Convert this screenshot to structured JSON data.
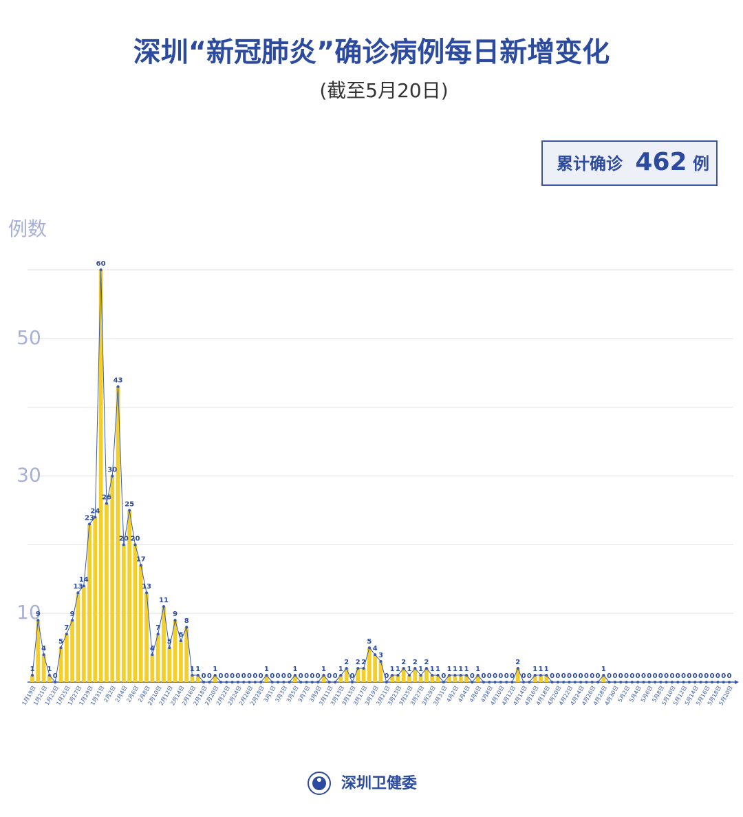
{
  "chart_data": {
    "type": "bar-line",
    "title": "深圳“新冠肺炎”确诊病例每日新增变化",
    "subtitle": "(截至5月20日)",
    "total": {
      "prefix": "累计确诊",
      "value": 462,
      "suffix": "例"
    },
    "y_label": "例数",
    "source": "深圳卫健委",
    "categories": [
      "1月19日",
      null,
      "1月21日",
      null,
      "1月23日",
      null,
      "1月25日",
      null,
      "1月27日",
      null,
      "1月29日",
      null,
      "1月31日",
      null,
      "2月2日",
      null,
      "2月4日",
      null,
      "2月6日",
      null,
      "2月8日",
      null,
      "2月10日",
      null,
      "2月12日",
      null,
      "2月14日",
      null,
      "2月16日",
      null,
      "2月18日",
      null,
      "2月20日",
      null,
      "2月22日",
      null,
      "2月24日",
      null,
      "2月26日",
      null,
      "2月28日",
      null,
      "3月1日",
      null,
      "3月3日",
      null,
      "3月5日",
      null,
      "3月7日",
      null,
      "3月9日",
      null,
      "3月11日",
      null,
      "3月13日",
      null,
      "3月15日",
      null,
      "3月17日",
      null,
      "3月19日",
      null,
      "3月21日",
      null,
      "3月23日",
      null,
      "3月25日",
      null,
      "3月27日",
      null,
      "3月29日",
      null,
      "3月31日",
      null,
      "4月2日",
      null,
      "4月4日",
      null,
      "4月6日",
      null,
      "4月8日",
      null,
      "4月10日",
      null,
      "4月12日",
      null,
      "4月14日",
      null,
      "4月16日",
      null,
      "4月18日",
      null,
      "4月20日",
      null,
      "4月22日",
      null,
      "4月24日",
      null,
      "4月26日",
      null,
      "4月28日",
      null,
      "4月30日",
      null,
      "5月2日",
      null,
      "5月4日",
      null,
      "5月6日",
      null,
      "5月8日",
      null,
      "5月10日",
      null,
      "5月12日",
      null,
      "5月14日",
      null,
      "5月16日",
      null,
      "5月18日",
      null,
      "5月20日"
    ],
    "values": [
      1,
      9,
      4,
      1,
      0,
      5,
      7,
      9,
      13,
      14,
      23,
      24,
      60,
      26,
      30,
      43,
      20,
      25,
      20,
      17,
      13,
      4,
      7,
      11,
      5,
      9,
      6,
      8,
      1,
      1,
      0,
      0,
      1,
      0,
      0,
      0,
      0,
      0,
      0,
      0,
      0,
      1,
      0,
      0,
      0,
      0,
      1,
      0,
      0,
      0,
      0,
      1,
      0,
      0,
      1,
      2,
      0,
      2,
      2,
      5,
      4,
      3,
      0,
      1,
      1,
      2,
      1,
      2,
      1,
      2,
      1,
      1,
      0,
      1,
      1,
      1,
      1,
      0,
      1,
      0,
      0,
      0,
      0,
      0,
      0,
      2,
      0,
      0,
      1,
      1,
      1,
      0,
      0,
      0,
      0,
      0,
      0,
      0,
      0,
      0,
      1,
      0,
      0,
      0,
      0,
      0,
      0,
      0,
      0,
      0,
      0,
      0,
      0,
      0,
      0,
      0,
      0,
      0,
      0,
      0,
      0,
      0,
      0
    ],
    "color": "#f2cf2c",
    "line_color": "#3a5aa8",
    "ylim": [
      0,
      60
    ],
    "yticks": [
      10,
      {
        "value": 20,
        "label": null
      },
      30,
      {
        "value": 40,
        "label": null
      },
      50,
      {
        "value": 60,
        "label": null
      }
    ],
    "grid": true
  }
}
